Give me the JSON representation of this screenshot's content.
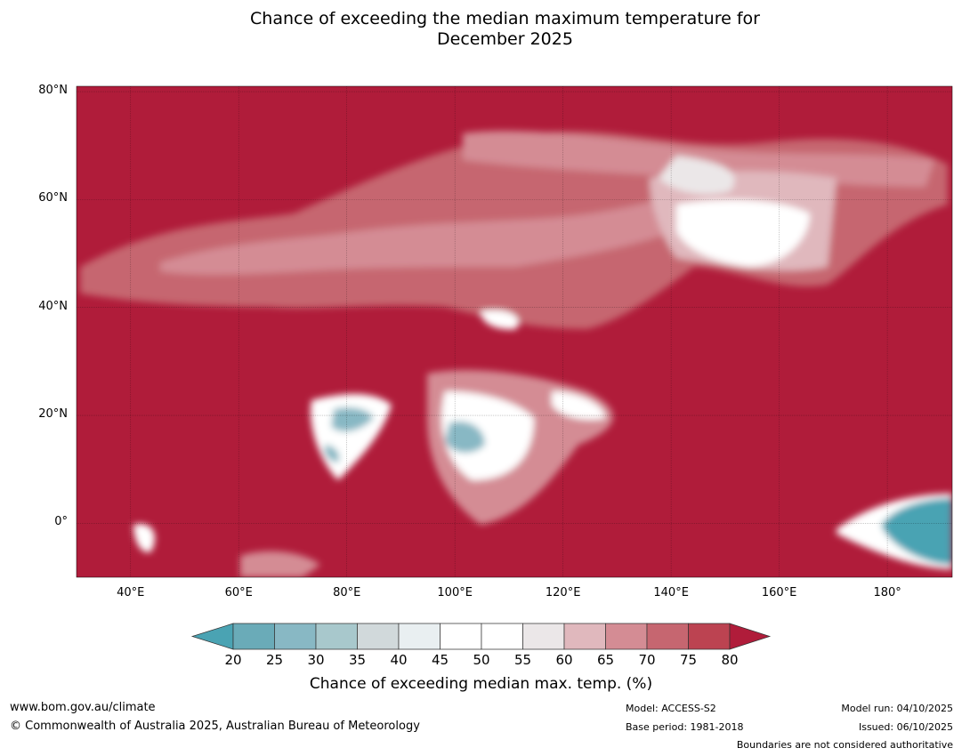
{
  "title_line1": "Chance of exceeding the median maximum temperature for",
  "title_line2": "December 2025",
  "map": {
    "lat_ticks": [
      {
        "value": 80,
        "label": "80°N"
      },
      {
        "value": 60,
        "label": "60°N"
      },
      {
        "value": 40,
        "label": "40°N"
      },
      {
        "value": 20,
        "label": "20°N"
      },
      {
        "value": 0,
        "label": "0°"
      }
    ],
    "lon_ticks": [
      {
        "value": 40,
        "label": "40°E"
      },
      {
        "value": 60,
        "label": "60°E"
      },
      {
        "value": 80,
        "label": "80°E"
      },
      {
        "value": 100,
        "label": "100°E"
      },
      {
        "value": 120,
        "label": "120°E"
      },
      {
        "value": 140,
        "label": "140°E"
      },
      {
        "value": 160,
        "label": "160°E"
      },
      {
        "value": 180,
        "label": "180°"
      }
    ],
    "lon_range": [
      30,
      192
    ],
    "lat_range": [
      -10,
      81
    ]
  },
  "colorbar": {
    "ticks": [
      "20",
      "25",
      "30",
      "35",
      "40",
      "45",
      "50",
      "55",
      "60",
      "65",
      "70",
      "75",
      "80"
    ],
    "colors": [
      "#6aabb8",
      "#88b8c4",
      "#a8c8cc",
      "#d1d9db",
      "#e9eff1",
      "#ffffff",
      "#ffffff",
      "#ebe7e8",
      "#e0b8bd",
      "#d48c94",
      "#c66670",
      "#bc4351"
    ],
    "under_color": "#4aa3b3",
    "over_color": "#b01c3a",
    "label": "Chance of exceeding median max. temp. (%)"
  },
  "footer": {
    "website": "www.bom.gov.au/climate",
    "copyright": "© Commonwealth of Australia 2025, Australian Bureau of Meteorology",
    "model": "Model: ACCESS-S2",
    "base_period": "Base period: 1981-2018",
    "model_run": "Model run: 04/10/2025",
    "issued": "Issued: 06/10/2025",
    "boundaries_note": "Boundaries are not considered authoritative"
  }
}
